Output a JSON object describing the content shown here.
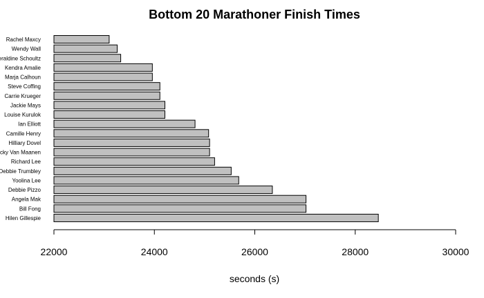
{
  "chart_data": {
    "type": "bar",
    "orientation": "horizontal",
    "title": "Bottom 20 Marathoner Finish Times",
    "xlabel": "seconds (s)",
    "ylabel": "",
    "xlim": [
      22000,
      30000
    ],
    "xticks": [
      22000,
      24000,
      26000,
      28000,
      30000
    ],
    "grid": false,
    "bar_fill": "#c0c0c0",
    "bar_stroke": "#000000",
    "categories": [
      "Rachel Maxcy",
      "Wendy Wall",
      "Geraldine Schoultz",
      "Kendra Amalie",
      "Marja Calhoun",
      "Steve Coffing",
      "Carrie Krueger",
      "Jackie Mays",
      "Louise Kurulok",
      "Ian Elliott",
      "Camille Henry",
      "Hilliary Dovel",
      "Becky Van Maanen",
      "Richard Lee",
      "Debbie Trumbley",
      "Yoolina Lee",
      "Debbie Pizzo",
      "Angela Mak",
      "Bill Fong",
      "Hilen Gillespie"
    ],
    "values": [
      23100,
      23260,
      23330,
      23960,
      23960,
      24110,
      24110,
      24210,
      24210,
      24810,
      25080,
      25100,
      25100,
      25200,
      25530,
      25680,
      26350,
      27020,
      27020,
      28460
    ]
  }
}
